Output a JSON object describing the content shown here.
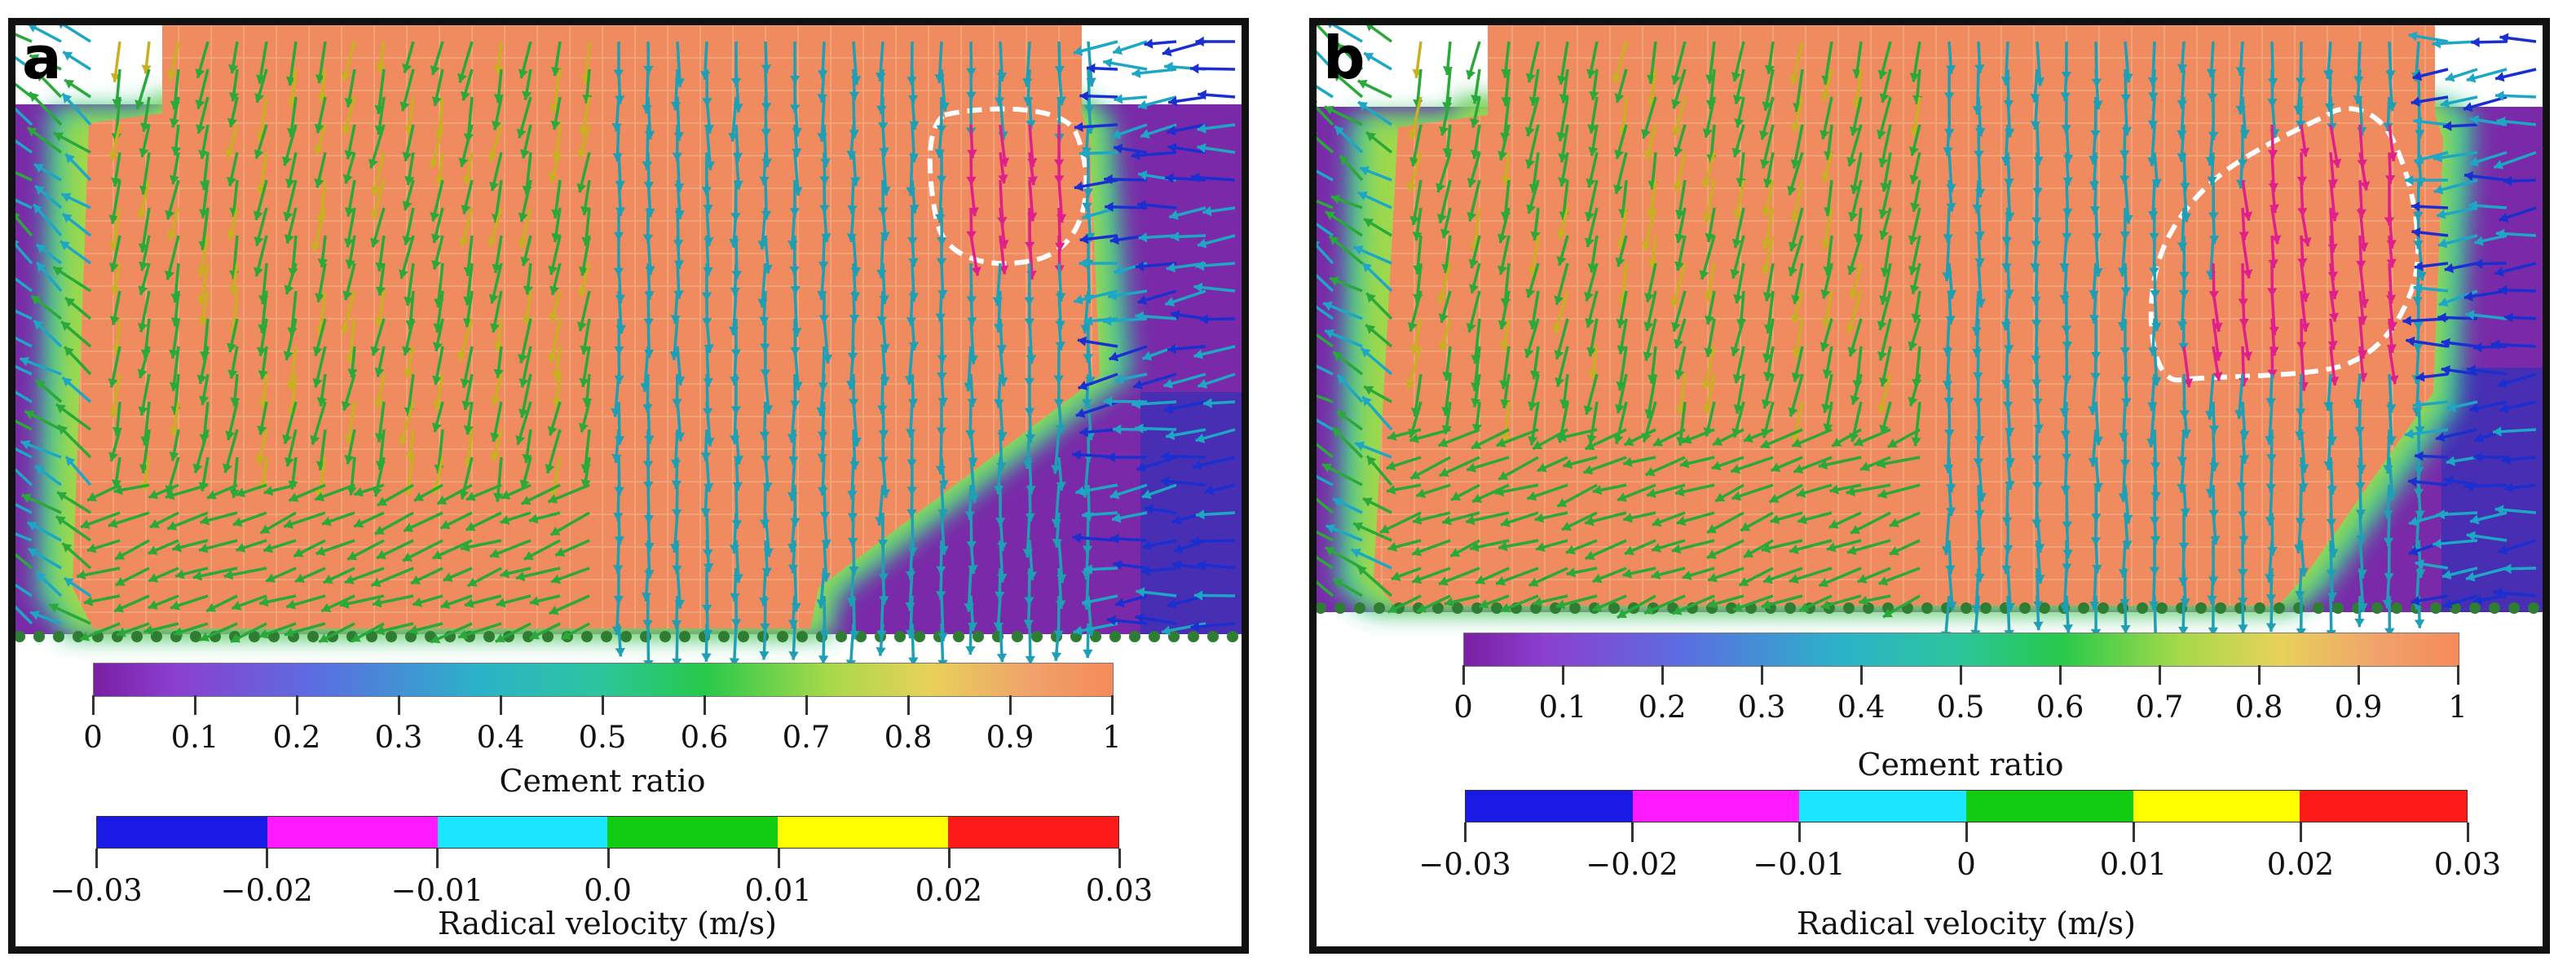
{
  "panels": [
    {
      "label": "a",
      "cement_scale": {
        "title": "Cement ratio",
        "ticks": [
          "0",
          "0.1",
          "0.2",
          "0.3",
          "0.4",
          "0.5",
          "0.6",
          "0.7",
          "0.8",
          "0.9",
          "1"
        ]
      },
      "velocity_scale": {
        "title": "Radical velocity (m/s)",
        "ticks": [
          "−0.03",
          "−0.02",
          "−0.01",
          "0.0",
          "0.01",
          "0.02",
          "0.03"
        ],
        "colors": [
          "#1a1ae6",
          "#ff1aff",
          "#1ae6ff",
          "#11cc11",
          "#ffff00",
          "#ff1a1a"
        ]
      }
    },
    {
      "label": "b",
      "cement_scale": {
        "title": "Cement ratio",
        "ticks": [
          "0",
          "0.1",
          "0.2",
          "0.3",
          "0.4",
          "0.5",
          "0.6",
          "0.7",
          "0.8",
          "0.9",
          "1"
        ]
      },
      "velocity_scale": {
        "title": "Radical velocity (m/s)",
        "ticks": [
          "−0.03",
          "−0.02",
          "−0.01",
          "0",
          "0.01",
          "0.02",
          "0.03"
        ],
        "colors": [
          "#1a1ae6",
          "#ff1aff",
          "#1ae6ff",
          "#11cc11",
          "#ffff00",
          "#ff1a1a"
        ]
      }
    }
  ]
}
